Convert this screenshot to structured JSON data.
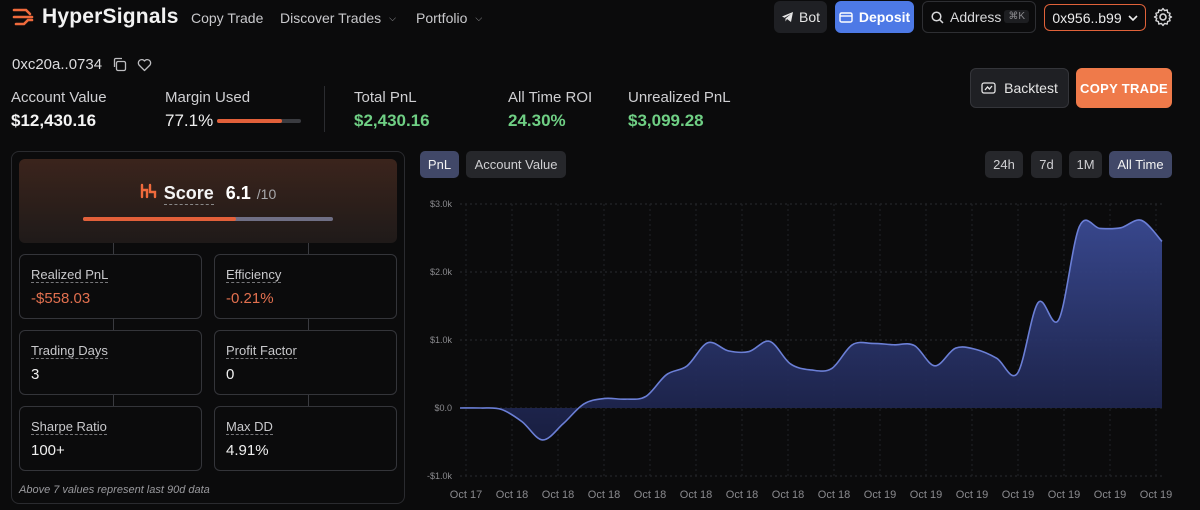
{
  "nav": {
    "brand": "HyperSignals",
    "links": [
      {
        "label": "Copy Trade"
      },
      {
        "label": "Discover Trades"
      },
      {
        "label": "Portfolio"
      }
    ],
    "bot_label": "Bot",
    "deposit_label": "Deposit",
    "address_placeholder": "Address",
    "address_shortcut": "⌘K",
    "wallet_label": "0x956..b99"
  },
  "trader": {
    "address": "0xc20a..0734"
  },
  "stats": {
    "account_value": {
      "label": "Account Value",
      "value": "$12,430.16"
    },
    "margin_used": {
      "label": "Margin Used",
      "value": "77.1%",
      "fraction": 0.771
    },
    "total_pnl": {
      "label": "Total PnL",
      "value": "$2,430.16"
    },
    "roi": {
      "label": "All Time ROI",
      "value": "24.30%"
    },
    "unrealized": {
      "label": "Unrealized PnL",
      "value": "$3,099.28"
    }
  },
  "actions": {
    "backtest_label": "Backtest",
    "copy_label": "COPY TRADE"
  },
  "score": {
    "label": "Score",
    "value": "6.1",
    "denominator": "/10",
    "fraction": 0.61
  },
  "metrics": [
    {
      "label": "Realized PnL",
      "value": "-$558.03"
    },
    {
      "label": "Efficiency",
      "value": "-0.21%"
    },
    {
      "label": "Trading Days",
      "value": "3"
    },
    {
      "label": "Profit Factor",
      "value": "0"
    },
    {
      "label": "Sharpe Ratio",
      "value": "100+"
    },
    {
      "label": "Max DD",
      "value": "4.91%"
    }
  ],
  "footnote": "Above 7 values represent last 90d data",
  "chart_tabs": {
    "pnl": "PnL",
    "account_value": "Account Value",
    "ranges": [
      "24h",
      "7d",
      "1M",
      "All Time"
    ],
    "active_range": "All Time"
  },
  "colors": {
    "accent": "#ef7a4a",
    "brand_blue": "#4d79e6",
    "positive": "#6fcf84",
    "negative": "#e2704f",
    "series_line": "#6b7fd6"
  },
  "chart_data": {
    "type": "area",
    "title": "",
    "xlabel": "",
    "ylabel": "",
    "ylim": [
      -1000,
      3000
    ],
    "yticks": [
      3000,
      2000,
      1000,
      0,
      -1000
    ],
    "ytick_labels": [
      "$3.0k",
      "$2.0k",
      "$1.0k",
      "$0.0",
      "-$1.0k"
    ],
    "xtick_labels": [
      "Oct 17",
      "Oct 18",
      "Oct 18",
      "Oct 18",
      "Oct 18",
      "Oct 18",
      "Oct 18",
      "Oct 18",
      "Oct 18",
      "Oct 19",
      "Oct 19",
      "Oct 19",
      "Oct 19",
      "Oct 19",
      "Oct 19",
      "Oct 19"
    ],
    "grid": true,
    "series": [
      {
        "values": [
          0,
          0,
          -20,
          -200,
          -470,
          -230,
          60,
          140,
          130,
          170,
          490,
          620,
          960,
          840,
          830,
          980,
          650,
          560,
          580,
          930,
          950,
          930,
          920,
          620,
          880,
          860,
          730,
          510,
          1550,
          1300,
          2670,
          2640,
          2650,
          2760,
          2450
        ]
      }
    ]
  }
}
